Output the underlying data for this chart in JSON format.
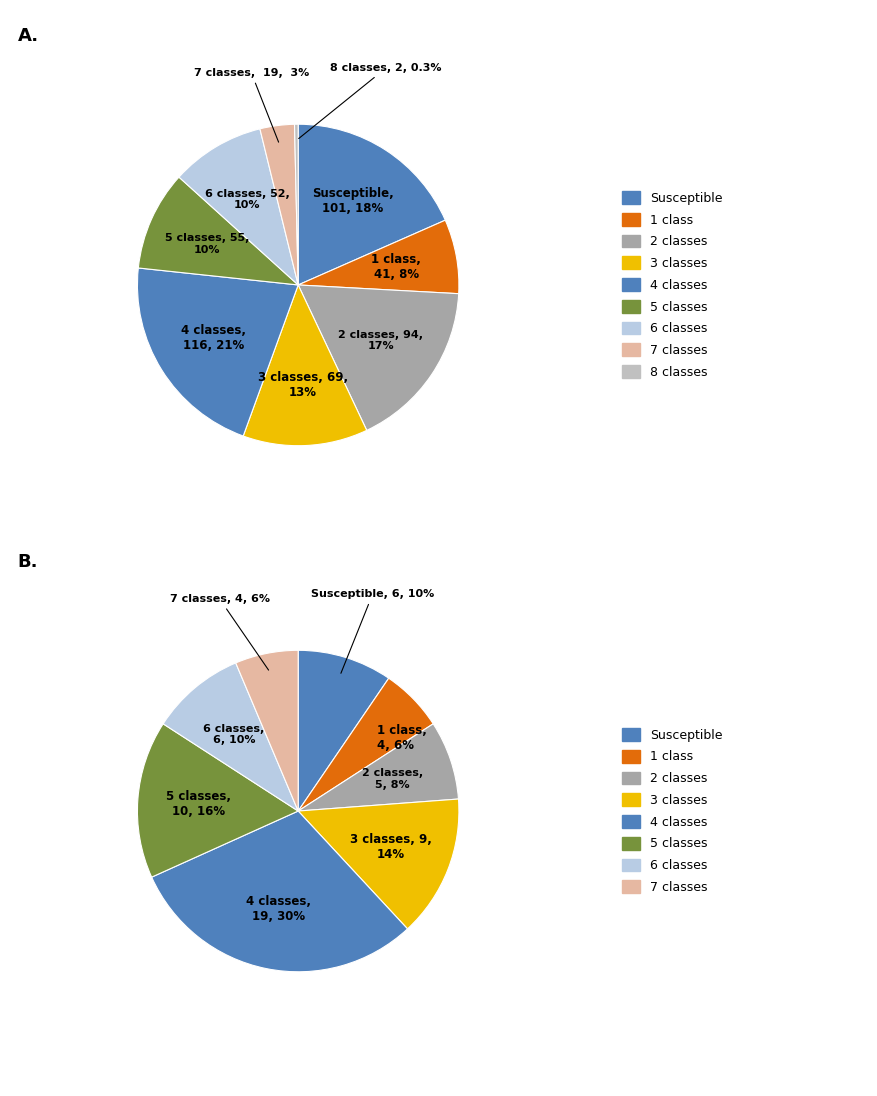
{
  "chart_A": {
    "labels": [
      "Susceptible",
      "1 class",
      "2 classes",
      "3 classes",
      "4 classes",
      "5 classes",
      "6 classes",
      "7 classes",
      "8 classes"
    ],
    "values": [
      101,
      41,
      94,
      69,
      116,
      55,
      52,
      19,
      2
    ],
    "percents": [
      "18%",
      "8%",
      "17%",
      "13%",
      "21%",
      "10%",
      "10%",
      "3%",
      "0.3%"
    ],
    "colors": [
      "#4F81BD",
      "#E36C0A",
      "#A6A6A6",
      "#F0C000",
      "#4F81BD",
      "#77933C",
      "#B8CCE4",
      "#E6B8A2",
      "#C0C0C0"
    ],
    "startangle": 90,
    "label": "A."
  },
  "chart_B": {
    "labels": [
      "Susceptible",
      "1 class",
      "2 classes",
      "3 classes",
      "4 classes",
      "5 classes",
      "6 classes",
      "7 classes"
    ],
    "values": [
      6,
      4,
      5,
      9,
      19,
      10,
      6,
      4
    ],
    "percents": [
      "10%",
      "6%",
      "8%",
      "14%",
      "30%",
      "16%",
      "10%",
      "6%"
    ],
    "colors": [
      "#4F81BD",
      "#E36C0A",
      "#A6A6A6",
      "#F0C000",
      "#4F81BD",
      "#77933C",
      "#B8CCE4",
      "#E6B8A2"
    ],
    "startangle": 90,
    "label": "B."
  },
  "legend_A_colors": [
    "#4F81BD",
    "#E36C0A",
    "#A6A6A6",
    "#F0C000",
    "#4F81BD",
    "#77933C",
    "#B8CCE4",
    "#E6B8A2",
    "#C0C0C0"
  ],
  "legend_A": [
    "Susceptible",
    "1 class",
    "2 classes",
    "3 classes",
    "4 classes",
    "5 classes",
    "6 classes",
    "7 classes",
    "8 classes"
  ],
  "legend_B_colors": [
    "#4F81BD",
    "#E36C0A",
    "#A6A6A6",
    "#F0C000",
    "#4F81BD",
    "#77933C",
    "#B8CCE4",
    "#E6B8A2"
  ],
  "legend_B": [
    "Susceptible",
    "1 class",
    "2 classes",
    "3 classes",
    "4 classes",
    "5 classes",
    "6 classes",
    "7 classes"
  ],
  "background_color": "#FFFFFF"
}
